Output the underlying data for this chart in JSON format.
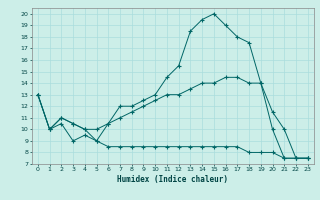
{
  "title": "",
  "xlabel": "Humidex (Indice chaleur)",
  "background_color": "#cceee8",
  "grid_color": "#aadddd",
  "line_color": "#006666",
  "xlim": [
    -0.5,
    23.5
  ],
  "ylim": [
    7,
    20.5
  ],
  "yticks": [
    7,
    8,
    9,
    10,
    11,
    12,
    13,
    14,
    15,
    16,
    17,
    18,
    19,
    20
  ],
  "xticks": [
    0,
    1,
    2,
    3,
    4,
    5,
    6,
    7,
    8,
    9,
    10,
    11,
    12,
    13,
    14,
    15,
    16,
    17,
    18,
    19,
    20,
    21,
    22,
    23
  ],
  "line1_x": [
    0,
    1,
    2,
    3,
    4,
    5,
    6,
    7,
    8,
    9,
    10,
    11,
    12,
    13,
    14,
    15,
    16,
    17,
    18,
    19,
    20,
    21,
    22,
    23
  ],
  "line1_y": [
    13,
    10,
    10.5,
    9,
    9.5,
    9,
    10.5,
    12,
    12,
    12.5,
    13,
    14.5,
    15.5,
    18.5,
    19.5,
    20,
    19,
    18,
    17.5,
    14,
    10,
    7.5,
    7.5,
    7.5
  ],
  "line2_x": [
    0,
    1,
    2,
    3,
    4,
    5,
    6,
    7,
    8,
    9,
    10,
    11,
    12,
    13,
    14,
    15,
    16,
    17,
    18,
    19,
    20,
    21,
    22,
    23
  ],
  "line2_y": [
    13,
    10,
    11,
    10.5,
    10,
    10,
    10.5,
    11,
    11.5,
    12,
    12.5,
    13,
    13,
    13.5,
    14,
    14,
    14.5,
    14.5,
    14,
    14,
    11.5,
    10,
    7.5,
    7.5
  ],
  "line3_x": [
    0,
    1,
    2,
    3,
    4,
    5,
    6,
    7,
    8,
    9,
    10,
    11,
    12,
    13,
    14,
    15,
    16,
    17,
    18,
    19,
    20,
    21,
    22,
    23
  ],
  "line3_y": [
    13,
    10,
    11,
    10.5,
    10,
    9,
    8.5,
    8.5,
    8.5,
    8.5,
    8.5,
    8.5,
    8.5,
    8.5,
    8.5,
    8.5,
    8.5,
    8.5,
    8,
    8,
    8,
    7.5,
    7.5,
    7.5
  ]
}
